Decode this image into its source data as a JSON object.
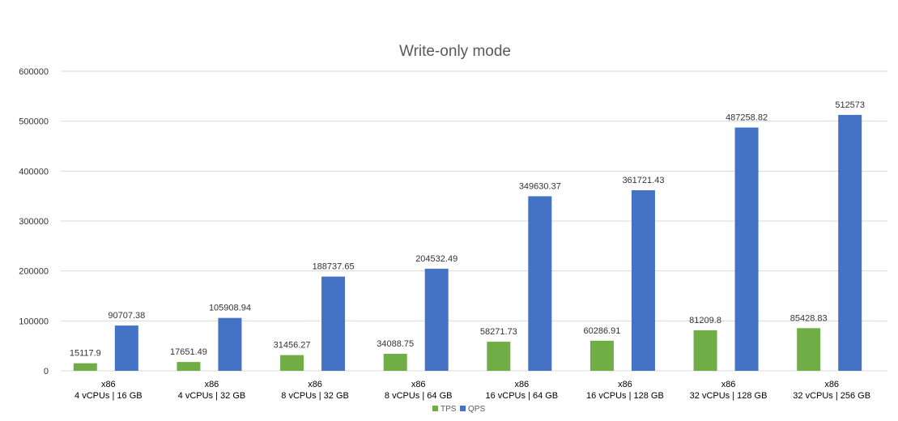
{
  "chart_data": {
    "type": "bar",
    "title": "Write-only mode",
    "xlabel": "",
    "ylabel": "",
    "ylim": [
      0,
      600000
    ],
    "yticks": [
      0,
      100000,
      200000,
      300000,
      400000,
      500000,
      600000
    ],
    "grid": true,
    "legend": "bottom",
    "categories": [
      [
        "x86",
        "4 vCPUs | 16 GB"
      ],
      [
        "x86",
        "4 vCPUs | 32 GB"
      ],
      [
        "x86",
        "8 vCPUs | 32 GB"
      ],
      [
        "x86",
        "8 vCPUs | 64 GB"
      ],
      [
        "x86",
        "16 vCPUs | 64 GB"
      ],
      [
        "x86",
        "16 vCPUs | 128 GB"
      ],
      [
        "x86",
        "32 vCPUs | 128 GB"
      ],
      [
        "x86",
        "32 vCPUs | 256 GB"
      ]
    ],
    "series": [
      {
        "name": "TPS",
        "color": "#70ad47",
        "values": [
          15117.9,
          17651.49,
          31456.27,
          34088.75,
          58271.73,
          60286.91,
          81209.8,
          85428.83
        ],
        "labels": [
          "15117.9",
          "17651.49",
          "31456.27",
          "34088.75",
          "58271.73",
          "60286.91",
          "81209.8",
          "85428.83"
        ]
      },
      {
        "name": "QPS",
        "color": "#4472c4",
        "values": [
          90707.38,
          105908.94,
          188737.65,
          204532.49,
          349630.37,
          361721.43,
          487258.82,
          512573
        ],
        "labels": [
          "90707.38",
          "105908.94",
          "188737.65",
          "204532.49",
          "349630.37",
          "361721.43",
          "487258.82",
          "512573"
        ]
      }
    ]
  }
}
